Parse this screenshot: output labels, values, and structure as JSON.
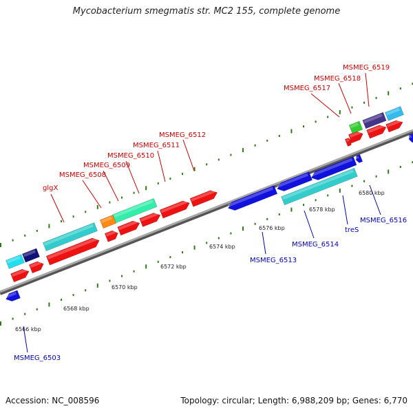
{
  "title": "Mycobacterium smegmatis str. MC2 155, complete genome",
  "footer": {
    "accession": "Accession: NC_008596",
    "summary": "Topology: circular; Length: 6,988,209 bp; Genes: 6,770"
  },
  "colors": {
    "backbone": "#8a8a8a",
    "tick_marks": "#2e7d12",
    "forward_label": "#cc0000",
    "reverse_label": "#0000bb",
    "red_feature": "#ee1111",
    "blue_feature": "#1111dd",
    "cyan_feature": "#33cccc",
    "aqua_feature": "#22ddee",
    "navy_feature": "#111177",
    "green_feature": "#33cc33",
    "spring_feature": "#33eeaa",
    "orange_feature": "#ff8811",
    "slate_feature": "#443388",
    "sky_feature": "#33bbee"
  },
  "kbp_labels": [
    "6566 kbp",
    "6568 kbp",
    "6570 kbp",
    "6572 kbp",
    "6574 kbp",
    "6576 kbp",
    "6578 kbp",
    "6580 kbp"
  ],
  "forward_gene_labels": [
    "glgX",
    "MSMEG_6508",
    "MSMEG_6509",
    "MSMEG_6510",
    "MSMEG_6511",
    "MSMEG_6512",
    "MSMEG_6517",
    "MSMEG_6518",
    "MSMEG_6519"
  ],
  "reverse_gene_labels": [
    "MSMEG_6503",
    "MSMEG_6513",
    "MSMEG_6514",
    "treS",
    "MSMEG_6516"
  ]
}
